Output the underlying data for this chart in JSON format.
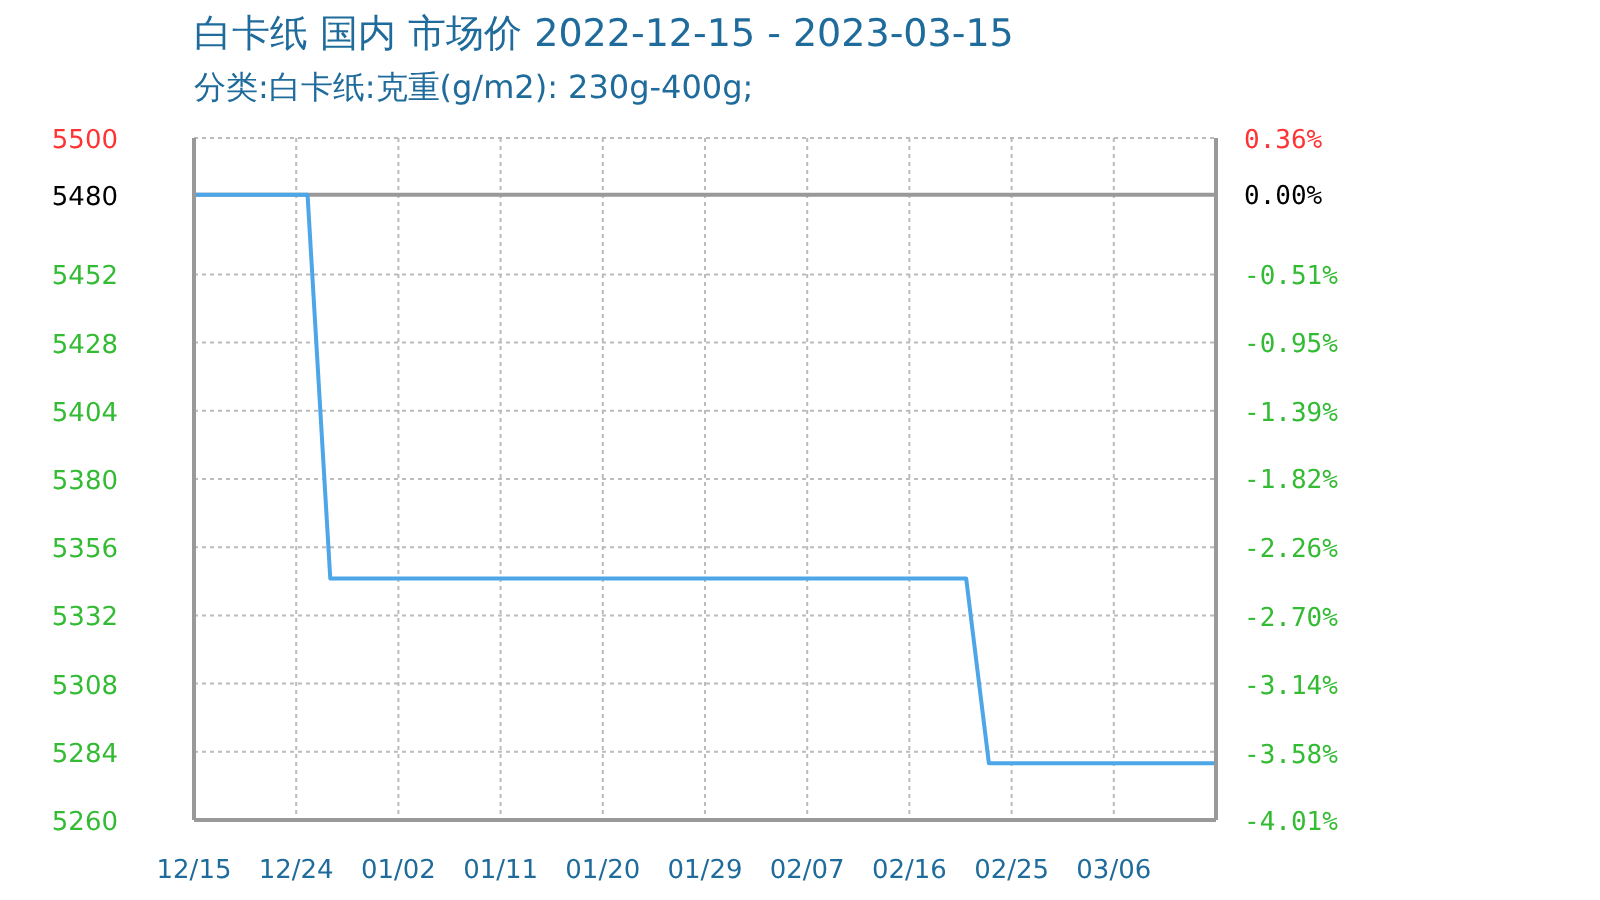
{
  "chart_data": {
    "type": "line",
    "title": "白卡纸 国内 市场价 2022-12-15 - 2023-03-15",
    "subtitle": "分类:白卡纸:克重(g/m2): 230g-400g;",
    "x": [
      "2022-12-15",
      "2022-12-25",
      "2022-12-27",
      "2023-02-21",
      "2023-02-23",
      "2023-03-15"
    ],
    "series": [
      {
        "color": "#4da6e8",
        "values": [
          5480,
          5480,
          5345,
          5345,
          5280,
          5280
        ]
      }
    ],
    "xlim": [
      "2022-12-15",
      "2023-03-15"
    ],
    "xticks": [
      {
        "value": "2022-12-15",
        "label": "12/15"
      },
      {
        "value": "2022-12-24",
        "label": "12/24"
      },
      {
        "value": "2023-01-02",
        "label": "01/02"
      },
      {
        "value": "2023-01-11",
        "label": "01/11"
      },
      {
        "value": "2023-01-20",
        "label": "01/20"
      },
      {
        "value": "2023-01-29",
        "label": "01/29"
      },
      {
        "value": "2023-02-07",
        "label": "02/07"
      },
      {
        "value": "2023-02-16",
        "label": "02/16"
      },
      {
        "value": "2023-02-25",
        "label": "02/25"
      },
      {
        "value": "2023-03-06",
        "label": "03/06"
      }
    ],
    "ylim": [
      5260,
      5500
    ],
    "yticks": [
      5260,
      5284,
      5308,
      5332,
      5356,
      5380,
      5404,
      5428,
      5452,
      5480,
      5500
    ],
    "y2lim": [
      -4.01,
      0.36
    ],
    "y2ticks": [
      {
        "value": -4.01,
        "label": "-4.01%"
      },
      {
        "value": -3.58,
        "label": "-3.58%"
      },
      {
        "value": -3.14,
        "label": "-3.14%"
      },
      {
        "value": -2.7,
        "label": "-2.70%"
      },
      {
        "value": -2.26,
        "label": "-2.26%"
      },
      {
        "value": -1.82,
        "label": "-1.82%"
      },
      {
        "value": -1.39,
        "label": "-1.39%"
      },
      {
        "value": -0.95,
        "label": "-0.95%"
      },
      {
        "value": -0.51,
        "label": "-0.51%"
      },
      {
        "value": 0,
        "label": "0.00%"
      },
      {
        "value": 0.36,
        "label": "0.36%"
      }
    ],
    "ref_lines": [
      {
        "axis": "y",
        "value": 5480,
        "color": "#999999"
      }
    ],
    "grid": true,
    "marker": "none",
    "line_style": "solid"
  }
}
